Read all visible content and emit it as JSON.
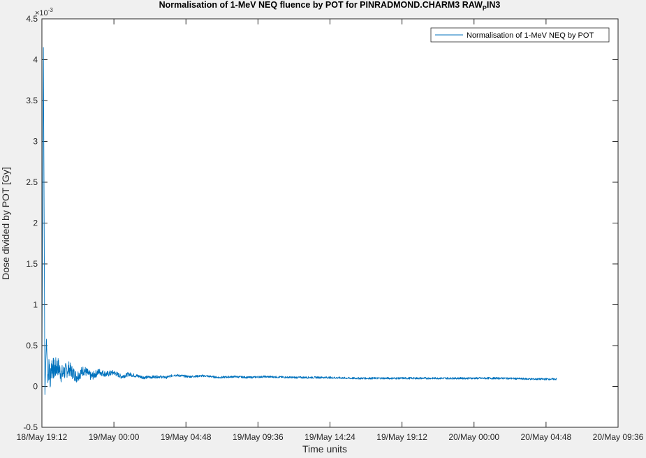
{
  "chart_data": {
    "type": "line",
    "title": "Normalisation of 1-MeV NEQ fluence by POT for PINRADMOND.CHARM3 RAW",
    "title_subscript": "P",
    "title_suffix": "IN3",
    "xlabel": "Time units",
    "ylabel": "Dose divided by POT [Gy]",
    "y_exponent_label": "×10",
    "y_exponent_value": "-3",
    "xlim": [
      "18/May 19:12",
      "20/May 09:36"
    ],
    "ylim": [
      -0.5,
      4.5
    ],
    "xticks": [
      "18/May 19:12",
      "19/May 00:00",
      "19/May 04:48",
      "19/May 09:36",
      "19/May 14:24",
      "19/May 19:12",
      "20/May 00:00",
      "20/May 04:48",
      "20/May 09:36"
    ],
    "yticks": [
      "-0.5",
      "0",
      "0.5",
      "1",
      "1.5",
      "2",
      "2.5",
      "3",
      "3.5",
      "4",
      "4.5"
    ],
    "grid": false,
    "legend_position": "top-right",
    "series": [
      {
        "name": "Normalisation of 1-MeV NEQ by POT",
        "color": "#0072bd",
        "x": [
          "18/May 19:12",
          "18/May 19:18",
          "18/May 19:24",
          "18/May 19:30",
          "18/May 19:36",
          "18/May 19:40",
          "18/May 19:45",
          "18/May 19:50",
          "18/May 20:00",
          "18/May 20:15",
          "18/May 20:30",
          "18/May 21:00",
          "18/May 21:30",
          "18/May 22:00",
          "18/May 22:30",
          "18/May 23:00",
          "18/May 23:30",
          "19/May 00:00",
          "19/May 00:30",
          "19/May 01:00",
          "19/May 02:00",
          "19/May 03:00",
          "19/May 03:30",
          "19/May 04:00",
          "19/May 05:00",
          "19/May 06:00",
          "19/May 07:00",
          "19/May 08:00",
          "19/May 09:00",
          "19/May 10:00",
          "19/May 12:00",
          "19/May 14:00",
          "19/May 16:00",
          "19/May 18:00",
          "19/May 20:00",
          "19/May 22:00",
          "20/May 00:00",
          "20/May 02:00",
          "20/May 04:00",
          "20/May 05:30"
        ],
        "values": [
          0.3,
          4.15,
          -0.1,
          0.58,
          0.05,
          0.35,
          0.02,
          0.28,
          0.2,
          0.25,
          0.15,
          0.22,
          0.12,
          0.2,
          0.12,
          0.18,
          0.15,
          0.17,
          0.12,
          0.15,
          0.11,
          0.12,
          0.11,
          0.14,
          0.12,
          0.13,
          0.11,
          0.12,
          0.11,
          0.12,
          0.11,
          0.11,
          0.1,
          0.1,
          0.1,
          0.1,
          0.1,
          0.1,
          0.09,
          0.09
        ]
      }
    ]
  }
}
